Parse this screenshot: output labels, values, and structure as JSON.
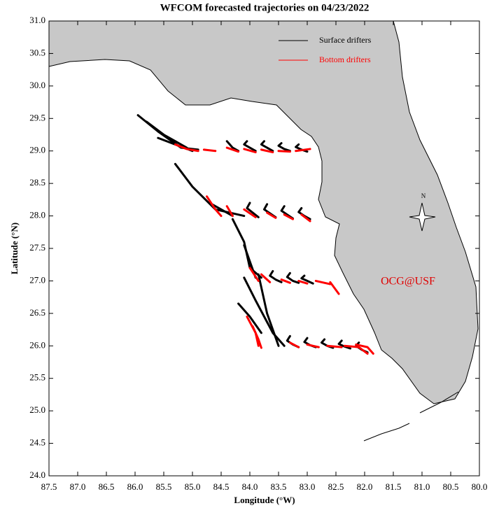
{
  "chart_data": {
    "type": "trajectory-map",
    "title": "WFCOM forecasted trajectories on 04/23/2022",
    "x_label": "Longitude (°W)",
    "y_label": "Latitude (°N)",
    "annotation": "OCG@USF",
    "compass_label": "N",
    "xlim": [
      87.5,
      80
    ],
    "ylim": [
      24,
      31
    ],
    "xticks": [
      87.5,
      {
        "value": 87,
        "label": "87.0"
      },
      86.5,
      {
        "value": 86,
        "label": "86.0"
      },
      85.5,
      {
        "value": 85,
        "label": "85.0"
      },
      84.5,
      {
        "value": 84,
        "label": "84.0"
      },
      83.5,
      {
        "value": 83,
        "label": "83.0"
      },
      82.5,
      {
        "value": 82,
        "label": "82.0"
      },
      81.5,
      {
        "value": 81,
        "label": "81.0"
      },
      80.5,
      {
        "value": 80,
        "label": "80.0"
      }
    ],
    "yticks": [
      {
        "value": 24,
        "label": "24.0"
      },
      24.5,
      {
        "value": 25,
        "label": "25.0"
      },
      25.5,
      {
        "value": 26,
        "label": "26.0"
      },
      26.5,
      {
        "value": 27,
        "label": "27.0"
      },
      27.5,
      {
        "value": 28,
        "label": "28.0"
      },
      28.5,
      {
        "value": 29,
        "label": "29.0"
      },
      29.5,
      {
        "value": 30,
        "label": "30.0"
      },
      30.5,
      {
        "value": 31,
        "label": "31.0"
      }
    ],
    "series": [
      {
        "name": "Surface drifters",
        "color": "#000000",
        "tracks": [
          {
            "x": [
              85.95,
              85.6,
              85.2,
              84.9
            ],
            "y": [
              29.55,
              29.3,
              29.05,
              29.02
            ]
          },
          {
            "x": [
              85.8,
              85.5,
              85.1
            ],
            "y": [
              29.45,
              29.25,
              29.05
            ]
          },
          {
            "x": [
              85.6,
              85.3,
              85.0
            ],
            "y": [
              29.2,
              29.1,
              29.0
            ]
          },
          {
            "x": [
              84.4,
              84.35,
              84.3,
              84.2
            ],
            "y": [
              29.15,
              29.1,
              29.05,
              29.0
            ]
          },
          {
            "x": [
              84.05,
              84.1,
              84.0,
              83.9
            ],
            "y": [
              29.15,
              29.1,
              29.05,
              29.0
            ]
          },
          {
            "x": [
              83.75,
              83.8,
              83.7,
              83.6
            ],
            "y": [
              29.15,
              29.1,
              29.05,
              29.0
            ]
          },
          {
            "x": [
              83.45,
              83.5,
              83.4,
              83.3
            ],
            "y": [
              29.12,
              29.08,
              29.03,
              29.0
            ]
          },
          {
            "x": [
              83.15,
              83.2,
              83.1,
              83.0
            ],
            "y": [
              29.1,
              29.06,
              29.02,
              28.99
            ]
          },
          {
            "x": [
              85.3,
              85.0,
              84.6,
              84.1
            ],
            "y": [
              28.8,
              28.45,
              28.1,
              28.0
            ]
          },
          {
            "x": [
              84.7,
              84.5,
              84.3
            ],
            "y": [
              28.2,
              28.1,
              28.0
            ]
          },
          {
            "x": [
              84.0,
              84.05,
              83.95,
              83.85
            ],
            "y": [
              28.2,
              28.12,
              28.05,
              27.98
            ]
          },
          {
            "x": [
              83.7,
              83.75,
              83.65,
              83.55
            ],
            "y": [
              28.18,
              28.1,
              28.04,
              27.98
            ]
          },
          {
            "x": [
              83.4,
              83.45,
              83.35,
              83.25
            ],
            "y": [
              28.15,
              28.08,
              28.02,
              27.96
            ]
          },
          {
            "x": [
              83.1,
              83.15,
              83.05,
              82.95
            ],
            "y": [
              28.12,
              28.06,
              28.0,
              27.95
            ]
          },
          {
            "x": [
              84.3,
              84.1,
              84.0,
              83.8
            ],
            "y": [
              27.95,
              27.6,
              27.2,
              27.05
            ]
          },
          {
            "x": [
              84.1,
              84.0,
              83.9
            ],
            "y": [
              27.55,
              27.3,
              27.05
            ]
          },
          {
            "x": [
              83.6,
              83.65,
              83.55,
              83.45
            ],
            "y": [
              27.15,
              27.08,
              27.02,
              26.98
            ]
          },
          {
            "x": [
              83.3,
              83.35,
              83.25,
              83.15
            ],
            "y": [
              27.12,
              27.06,
              27.0,
              26.97
            ]
          },
          {
            "x": [
              83.05,
              83.1,
              83.0,
              82.9
            ],
            "y": [
              27.08,
              27.04,
              27.0,
              26.96
            ]
          },
          {
            "x": [
              84.1,
              83.9,
              83.6,
              83.4
            ],
            "y": [
              27.05,
              26.7,
              26.2,
              26.0
            ]
          },
          {
            "x": [
              83.85,
              83.7,
              83.5
            ],
            "y": [
              27.1,
              26.5,
              26.0
            ]
          },
          {
            "x": [
              84.2,
              84.0,
              83.8
            ],
            "y": [
              26.65,
              26.45,
              26.2
            ]
          },
          {
            "x": [
              83.3,
              83.35,
              83.25,
              83.15
            ],
            "y": [
              26.15,
              26.08,
              26.02,
              25.98
            ]
          },
          {
            "x": [
              83.0,
              83.05,
              82.95,
              82.85
            ],
            "y": [
              26.12,
              26.06,
              26.01,
              25.98
            ]
          },
          {
            "x": [
              82.7,
              82.75,
              82.65,
              82.55
            ],
            "y": [
              26.1,
              26.05,
              26.0,
              25.97
            ]
          },
          {
            "x": [
              82.4,
              82.45,
              82.35,
              82.25
            ],
            "y": [
              26.08,
              26.03,
              25.99,
              25.96
            ]
          },
          {
            "x": [
              82.1,
              82.15,
              82.05,
              81.95
            ],
            "y": [
              26.05,
              26.0,
              25.94,
              25.9
            ]
          }
        ]
      },
      {
        "name": "Bottom drifters",
        "color": "#ff0000",
        "tracks": [
          {
            "x": [
              85.3,
              85.1,
              84.9
            ],
            "y": [
              29.1,
              29.03,
              29.0
            ]
          },
          {
            "x": [
              84.8,
              84.6
            ],
            "y": [
              29.02,
              29.0
            ]
          },
          {
            "x": [
              84.4,
              84.2
            ],
            "y": [
              29.05,
              28.99
            ]
          },
          {
            "x": [
              84.1,
              83.9
            ],
            "y": [
              29.03,
              28.98
            ]
          },
          {
            "x": [
              83.8,
              83.6
            ],
            "y": [
              29.02,
              28.98
            ]
          },
          {
            "x": [
              83.5,
              83.3
            ],
            "y": [
              29.0,
              28.99
            ]
          },
          {
            "x": [
              83.2,
              82.95
            ],
            "y": [
              29.0,
              29.03
            ]
          },
          {
            "x": [
              84.75,
              84.6,
              84.5
            ],
            "y": [
              28.3,
              28.1,
              28.0
            ]
          },
          {
            "x": [
              84.4,
              84.3
            ],
            "y": [
              28.15,
              28.0
            ]
          },
          {
            "x": [
              84.1,
              83.9
            ],
            "y": [
              28.1,
              27.98
            ]
          },
          {
            "x": [
              83.7,
              83.55
            ],
            "y": [
              28.05,
              27.97
            ]
          },
          {
            "x": [
              83.4,
              83.25
            ],
            "y": [
              28.02,
              27.95
            ]
          },
          {
            "x": [
              83.1,
              82.95
            ],
            "y": [
              28.02,
              27.92
            ]
          },
          {
            "x": [
              84.0,
              83.85
            ],
            "y": [
              27.2,
              27.0
            ]
          },
          {
            "x": [
              83.8,
              83.65
            ],
            "y": [
              27.1,
              26.98
            ]
          },
          {
            "x": [
              83.45,
              83.3
            ],
            "y": [
              27.02,
              26.97
            ]
          },
          {
            "x": [
              83.15,
              83.0
            ],
            "y": [
              27.0,
              26.96
            ]
          },
          {
            "x": [
              82.85,
              82.6
            ],
            "y": [
              27.0,
              26.95
            ]
          },
          {
            "x": [
              82.6,
              82.45
            ],
            "y": [
              26.98,
              26.8
            ]
          },
          {
            "x": [
              83.95,
              83.85,
              83.8
            ],
            "y": [
              26.3,
              26.1,
              25.97
            ]
          },
          {
            "x": [
              84.05,
              83.9,
              83.85
            ],
            "y": [
              26.45,
              26.2,
              26.0
            ]
          },
          {
            "x": [
              83.3,
              83.15
            ],
            "y": [
              26.05,
              25.98
            ]
          },
          {
            "x": [
              83.0,
              82.8
            ],
            "y": [
              26.02,
              25.98
            ]
          },
          {
            "x": [
              82.65,
              82.4
            ],
            "y": [
              26.0,
              25.98
            ]
          },
          {
            "x": [
              82.35,
              82.1,
              81.95
            ],
            "y": [
              26.0,
              25.98,
              25.88
            ]
          },
          {
            "x": [
              82.15,
              81.95,
              81.85
            ],
            "y": [
              26.02,
              25.98,
              25.88
            ]
          }
        ]
      }
    ]
  }
}
